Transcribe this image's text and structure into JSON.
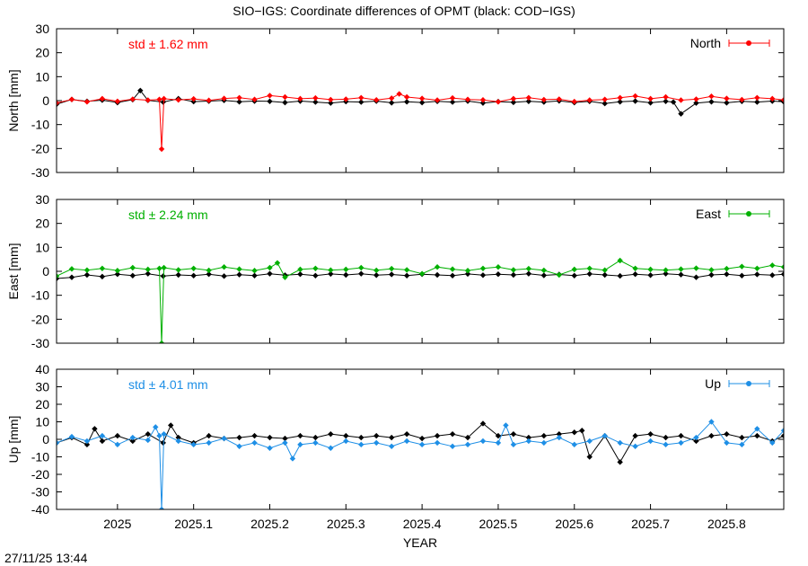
{
  "figure": {
    "title": "SIO−IGS: Coordinate differences of OPMT (black: COD−IGS)",
    "timestamp": "27/11/25 13:44",
    "xlabel": "YEAR"
  },
  "colors": {
    "reference": "#000000",
    "north": "#ff0000",
    "east": "#00b000",
    "up": "#1e8fe6"
  },
  "chart_data": [
    {
      "type": "line",
      "panel": "north",
      "ylabel": "North [mm]",
      "ylim": [
        -30,
        30
      ],
      "yticks": [
        30,
        20,
        10,
        0,
        -10,
        -20,
        -30
      ],
      "xlim": [
        2024.92,
        2025.875
      ],
      "xticks": [
        "2025",
        "2025.1",
        "2025.2",
        "2025.3",
        "2025.4",
        "2025.5",
        "2025.6",
        "2025.7",
        "2025.8"
      ],
      "legend": "North",
      "legend_position": "top-right",
      "std_label": "std ± 1.62 mm",
      "series": [
        {
          "name": "North",
          "color": "#ff0000",
          "x": [
            2024.92,
            2024.94,
            2024.96,
            2024.98,
            2025.0,
            2025.02,
            2025.04,
            2025.055,
            2025.058,
            2025.061,
            2025.08,
            2025.1,
            2025.12,
            2025.14,
            2025.16,
            2025.18,
            2025.2,
            2025.22,
            2025.24,
            2025.26,
            2025.28,
            2025.3,
            2025.32,
            2025.34,
            2025.36,
            2025.37,
            2025.38,
            2025.4,
            2025.42,
            2025.44,
            2025.46,
            2025.48,
            2025.5,
            2025.52,
            2025.54,
            2025.56,
            2025.58,
            2025.6,
            2025.62,
            2025.64,
            2025.66,
            2025.68,
            2025.7,
            2025.72,
            2025.74,
            2025.76,
            2025.78,
            2025.8,
            2025.82,
            2025.84,
            2025.86,
            2025.875
          ],
          "y": [
            -1,
            0.5,
            -0.5,
            0.8,
            -0.3,
            0.6,
            0.2,
            0.5,
            -20.2,
            0.8,
            0.3,
            0.7,
            0.1,
            0.9,
            1.2,
            0.5,
            2.1,
            1.5,
            0.8,
            1.1,
            0.4,
            0.6,
            1.2,
            0.3,
            1.0,
            2.8,
            1.5,
            0.9,
            0.2,
            1.1,
            0.5,
            0.3,
            -0.5,
            0.8,
            1.2,
            0.4,
            0.6,
            -0.4,
            0.2,
            0.5,
            1.2,
            1.9,
            0.8,
            1.5,
            0.2,
            0.6,
            1.8,
            0.9,
            0.4,
            1.2,
            0.8,
            0.3
          ]
        }
      ],
      "reference": {
        "name": "COD−IGS",
        "x": [
          2024.92,
          2024.94,
          2024.96,
          2024.98,
          2025.0,
          2025.02,
          2025.03,
          2025.04,
          2025.06,
          2025.08,
          2025.1,
          2025.12,
          2025.14,
          2025.16,
          2025.18,
          2025.2,
          2025.22,
          2025.24,
          2025.26,
          2025.28,
          2025.3,
          2025.32,
          2025.34,
          2025.36,
          2025.38,
          2025.4,
          2025.42,
          2025.44,
          2025.46,
          2025.48,
          2025.5,
          2025.52,
          2025.54,
          2025.56,
          2025.58,
          2025.6,
          2025.62,
          2025.64,
          2025.66,
          2025.68,
          2025.7,
          2025.72,
          2025.73,
          2025.74,
          2025.76,
          2025.78,
          2025.8,
          2025.82,
          2025.84,
          2025.86,
          2025.875
        ],
        "y": [
          -1.5,
          0.5,
          -0.3,
          0.2,
          -0.8,
          0.4,
          4.2,
          0.1,
          -0.6,
          0.8,
          -0.4,
          -0.2,
          0.1,
          -0.5,
          -0.2,
          -0.3,
          -0.8,
          -0.2,
          -0.6,
          -1.0,
          -0.4,
          -0.6,
          -0.2,
          -0.9,
          -0.5,
          -0.8,
          -0.3,
          -0.6,
          -0.2,
          -1.0,
          -0.4,
          -0.7,
          -0.3,
          -0.6,
          -0.1,
          -0.8,
          -0.3,
          -1.2,
          -0.5,
          -0.2,
          -0.9,
          -0.3,
          -0.6,
          -5.5,
          -1.0,
          -0.5,
          -0.9,
          -0.3,
          -0.6,
          -0.2,
          -0.5
        ]
      }
    },
    {
      "type": "line",
      "panel": "east",
      "ylabel": "East [mm]",
      "ylim": [
        -30,
        30
      ],
      "yticks": [
        30,
        20,
        10,
        0,
        -10,
        -20,
        -30
      ],
      "xlim": [
        2024.92,
        2025.875
      ],
      "xticks": [
        "2025",
        "2025.1",
        "2025.2",
        "2025.3",
        "2025.4",
        "2025.5",
        "2025.6",
        "2025.7",
        "2025.8"
      ],
      "legend": "East",
      "legend_position": "top-right",
      "std_label": "std ± 2.24 mm",
      "series": [
        {
          "name": "East",
          "color": "#00b000",
          "x": [
            2024.92,
            2024.94,
            2024.96,
            2024.98,
            2025.0,
            2025.02,
            2025.04,
            2025.055,
            2025.058,
            2025.061,
            2025.08,
            2025.1,
            2025.12,
            2025.14,
            2025.16,
            2025.18,
            2025.2,
            2025.21,
            2025.22,
            2025.24,
            2025.26,
            2025.28,
            2025.3,
            2025.32,
            2025.34,
            2025.36,
            2025.38,
            2025.4,
            2025.42,
            2025.44,
            2025.46,
            2025.48,
            2025.5,
            2025.52,
            2025.54,
            2025.56,
            2025.58,
            2025.6,
            2025.62,
            2025.64,
            2025.66,
            2025.68,
            2025.7,
            2025.72,
            2025.74,
            2025.76,
            2025.78,
            2025.8,
            2025.82,
            2025.84,
            2025.86,
            2025.875
          ],
          "y": [
            -2,
            1,
            0.5,
            1.2,
            0.3,
            1.5,
            0.8,
            1.2,
            -30,
            1.5,
            0.6,
            1.2,
            0.4,
            1.8,
            0.9,
            0.3,
            1.5,
            3.5,
            -2.5,
            0.8,
            1.2,
            0.5,
            0.8,
            1.5,
            0.4,
            1.1,
            0.6,
            -1.0,
            1.8,
            0.9,
            0.3,
            1.2,
            1.8,
            0.6,
            1.1,
            0.4,
            -1.5,
            0.8,
            1.2,
            0.5,
            4.5,
            1.2,
            0.8,
            0.5,
            0.9,
            1.3,
            0.6,
            1.1,
            2.0,
            1.2,
            2.5,
            1.8
          ]
        }
      ],
      "reference": {
        "name": "COD−IGS",
        "x": [
          2024.92,
          2024.94,
          2024.96,
          2024.98,
          2025.0,
          2025.02,
          2025.04,
          2025.06,
          2025.08,
          2025.1,
          2025.12,
          2025.14,
          2025.16,
          2025.18,
          2025.2,
          2025.22,
          2025.24,
          2025.26,
          2025.28,
          2025.3,
          2025.32,
          2025.34,
          2025.36,
          2025.38,
          2025.4,
          2025.42,
          2025.44,
          2025.46,
          2025.48,
          2025.5,
          2025.52,
          2025.54,
          2025.56,
          2025.58,
          2025.6,
          2025.62,
          2025.64,
          2025.66,
          2025.68,
          2025.7,
          2025.72,
          2025.74,
          2025.76,
          2025.78,
          2025.8,
          2025.82,
          2025.84,
          2025.86,
          2025.875
        ],
        "y": [
          -3,
          -2.5,
          -1.5,
          -2.2,
          -1.2,
          -1.8,
          -1.0,
          -2.0,
          -1.5,
          -1.8,
          -1.2,
          -2.0,
          -1.4,
          -1.8,
          -1.0,
          -1.6,
          -1.2,
          -1.8,
          -1.1,
          -1.5,
          -1.0,
          -1.6,
          -1.3,
          -1.8,
          -1.2,
          -1.5,
          -1.8,
          -1.1,
          -1.6,
          -1.2,
          -1.5,
          -1.0,
          -1.7,
          -1.3,
          -1.8,
          -1.1,
          -1.5,
          -1.9,
          -1.2,
          -1.6,
          -1.0,
          -1.4,
          -2.5,
          -1.5,
          -1.2,
          -1.8,
          -1.3,
          -1.6,
          -1.2
        ]
      }
    },
    {
      "type": "line",
      "panel": "up",
      "ylabel": "Up [mm]",
      "ylim": [
        -40,
        40
      ],
      "yticks": [
        40,
        30,
        20,
        10,
        0,
        -10,
        -20,
        -30,
        -40
      ],
      "xlim": [
        2024.92,
        2025.875
      ],
      "xticks": [
        "2025",
        "2025.1",
        "2025.2",
        "2025.3",
        "2025.4",
        "2025.5",
        "2025.6",
        "2025.7",
        "2025.8"
      ],
      "legend": "Up",
      "legend_position": "top-right",
      "std_label": "std ± 4.01 mm",
      "series": [
        {
          "name": "Up",
          "color": "#1e8fe6",
          "x": [
            2024.92,
            2024.94,
            2024.96,
            2024.98,
            2025.0,
            2025.02,
            2025.04,
            2025.05,
            2025.055,
            2025.058,
            2025.061,
            2025.08,
            2025.1,
            2025.12,
            2025.14,
            2025.16,
            2025.18,
            2025.2,
            2025.22,
            2025.23,
            2025.24,
            2025.26,
            2025.28,
            2025.3,
            2025.32,
            2025.34,
            2025.36,
            2025.38,
            2025.4,
            2025.42,
            2025.44,
            2025.46,
            2025.48,
            2025.5,
            2025.51,
            2025.52,
            2025.54,
            2025.56,
            2025.58,
            2025.6,
            2025.62,
            2025.64,
            2025.66,
            2025.68,
            2025.7,
            2025.72,
            2025.74,
            2025.76,
            2025.78,
            2025.8,
            2025.82,
            2025.84,
            2025.86,
            2025.875
          ],
          "y": [
            -2,
            1.5,
            -1,
            2,
            -3,
            1,
            -0.5,
            7,
            2,
            -40,
            3,
            -1,
            -3,
            -2,
            0.5,
            -4,
            -2,
            -5,
            -2,
            -11,
            -3,
            -2,
            -5,
            -1,
            -3,
            -2,
            -4,
            -1,
            -3,
            -2,
            -4,
            -3,
            -1,
            -2,
            8,
            -3,
            -1,
            -2,
            1,
            -3,
            -1,
            2,
            -2,
            -4,
            -1,
            -3,
            -2,
            1,
            10,
            -2,
            -3,
            6,
            -2,
            5
          ]
        }
      ],
      "reference": {
        "name": "COD−IGS",
        "x": [
          2024.92,
          2024.94,
          2024.96,
          2024.97,
          2024.98,
          2025.0,
          2025.02,
          2025.04,
          2025.06,
          2025.07,
          2025.08,
          2025.1,
          2025.12,
          2025.14,
          2025.16,
          2025.18,
          2025.2,
          2025.22,
          2025.24,
          2025.26,
          2025.28,
          2025.3,
          2025.32,
          2025.34,
          2025.36,
          2025.38,
          2025.4,
          2025.42,
          2025.44,
          2025.46,
          2025.48,
          2025.5,
          2025.52,
          2025.54,
          2025.56,
          2025.58,
          2025.6,
          2025.61,
          2025.62,
          2025.64,
          2025.66,
          2025.68,
          2025.7,
          2025.72,
          2025.74,
          2025.76,
          2025.78,
          2025.8,
          2025.82,
          2025.84,
          2025.86,
          2025.875
        ],
        "y": [
          -2,
          1,
          -3,
          6,
          -1,
          2,
          -1,
          3,
          -2,
          8,
          1,
          -2,
          2,
          0.5,
          1,
          2,
          1,
          0.5,
          2,
          1,
          3,
          2,
          1,
          2,
          1,
          3,
          0.5,
          2,
          3,
          1,
          9,
          2,
          3,
          1,
          2,
          3,
          4,
          5,
          -10,
          2,
          -13,
          2,
          3,
          1,
          2,
          -1,
          2,
          3,
          1,
          2,
          -1,
          2
        ]
      }
    }
  ]
}
